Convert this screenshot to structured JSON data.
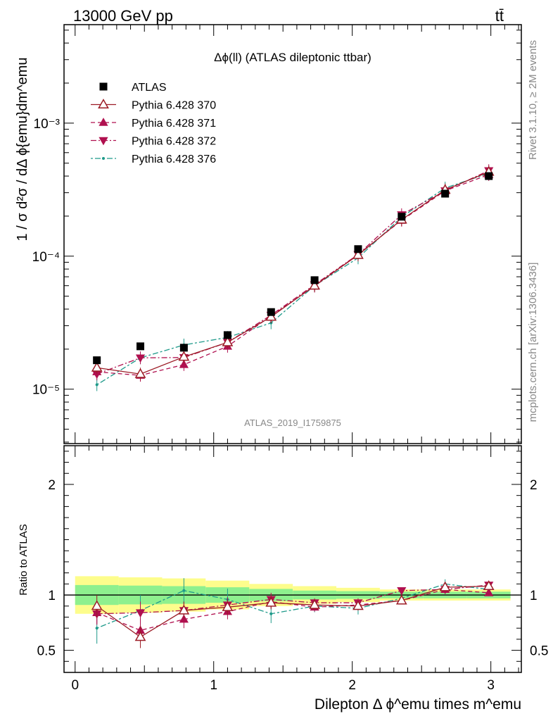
{
  "header": {
    "left": "13000 GeV pp",
    "right": "tt̄"
  },
  "side_labels": {
    "rivet": "Rivet 3.1.10, ≥ 2M events",
    "mcplots": "mcplots.cern.ch [arXiv:1306.3436]"
  },
  "watermark": "ATLAS_2019_I1759875",
  "chart_data": [
    {
      "type": "scatter",
      "panel": "main",
      "title": "Δϕ(ll) (ATLAS dileptonic ttbar)",
      "ylabel": "1 / σ  d²σ / dΔ ϕ{emu}dm^emu",
      "xlim": [
        -0.08,
        3.22
      ],
      "ylim": [
        3.9e-06,
        0.0055
      ],
      "log_y": true,
      "y_ticks": [
        "10⁻⁵",
        "10⁻⁴",
        "10⁻³"
      ],
      "x": [
        0.157,
        0.471,
        0.785,
        1.1,
        1.414,
        1.728,
        2.042,
        2.356,
        2.67,
        2.985
      ],
      "series": [
        {
          "name": "ATLAS",
          "color": "#000000",
          "marker": "square",
          "values": [
            1.65e-05,
            2.1e-05,
            2.05e-05,
            2.55e-05,
            3.8e-05,
            6.6e-05,
            0.000113,
            0.000198,
            0.000295,
            0.0004
          ]
        },
        {
          "name": "Pythia 6.428 370",
          "color": "#9c1c26",
          "marker": "triangle-up-open",
          "dash": "",
          "values": [
            1.45e-05,
            1.3e-05,
            1.75e-05,
            2.25e-05,
            3.5e-05,
            6e-05,
            0.000102,
            0.000188,
            0.000315,
            0.00043
          ]
        },
        {
          "name": "Pythia 6.428 371",
          "color": "#b0104f",
          "marker": "triangle-up",
          "dash": "6,4",
          "values": [
            1.35e-05,
            1.27e-05,
            1.53e-05,
            2.1e-05,
            3.55e-05,
            5.95e-05,
            0.000103,
            0.000186,
            0.00031,
            0.00041
          ]
        },
        {
          "name": "Pythia 6.428 372",
          "color": "#b0104f",
          "marker": "triangle-down",
          "dash": "8,3,2,3",
          "values": [
            1.3e-05,
            1.72e-05,
            1.73e-05,
            2.25e-05,
            3.6e-05,
            6.1e-05,
            0.000103,
            0.000205,
            0.00031,
            0.00044
          ]
        },
        {
          "name": "Pythia 6.428 376",
          "color": "#1f9a8a",
          "marker": "dot",
          "dash": "3,3,8,3",
          "values": [
            1.08e-05,
            1.72e-05,
            2.15e-05,
            2.45e-05,
            3.15e-05,
            6e-05,
            9.7e-05,
            0.000197,
            0.000325,
            0.00042
          ]
        }
      ]
    },
    {
      "type": "scatter",
      "panel": "ratio",
      "ylabel": "Ratio to ATLAS",
      "xlabel": "Dilepton Δ ϕ^emu times m^emu",
      "xlim": [
        -0.08,
        3.22
      ],
      "ylim": [
        0.3,
        2.35
      ],
      "x_ticks": [
        "0",
        "1",
        "2",
        "3"
      ],
      "y_ticks": [
        "0.5",
        "1",
        "2"
      ],
      "x": [
        0.157,
        0.471,
        0.785,
        1.1,
        1.414,
        1.728,
        2.042,
        2.356,
        2.67,
        2.985
      ],
      "bin_edges": [
        0.0,
        0.314,
        0.628,
        0.942,
        1.257,
        1.571,
        1.885,
        2.199,
        2.513,
        2.827,
        3.142
      ],
      "band_inner": [
        0.09,
        0.085,
        0.08,
        0.07,
        0.055,
        0.04,
        0.035,
        0.03,
        0.03,
        0.03
      ],
      "band_outer": [
        0.17,
        0.16,
        0.15,
        0.13,
        0.1,
        0.08,
        0.065,
        0.05,
        0.05,
        0.05
      ],
      "band_colors": {
        "inner": "#8ef08e",
        "outer": "#fdfd8c"
      },
      "series": [
        {
          "name": "Pythia 6.428 370",
          "values": [
            0.9,
            0.62,
            0.86,
            0.89,
            0.93,
            0.91,
            0.9,
            0.95,
            1.07,
            1.08
          ]
        },
        {
          "name": "Pythia 6.428 371",
          "values": [
            0.84,
            0.68,
            0.78,
            0.85,
            0.94,
            0.89,
            0.91,
            0.95,
            1.05,
            1.02
          ]
        },
        {
          "name": "Pythia 6.428 372",
          "values": [
            0.83,
            0.84,
            0.86,
            0.91,
            0.96,
            0.93,
            0.93,
            1.04,
            1.05,
            1.09
          ]
        },
        {
          "name": "Pythia 6.428 376",
          "values": [
            0.7,
            0.86,
            1.04,
            0.96,
            0.83,
            0.9,
            0.88,
            0.97,
            1.1,
            1.05
          ]
        }
      ]
    }
  ]
}
